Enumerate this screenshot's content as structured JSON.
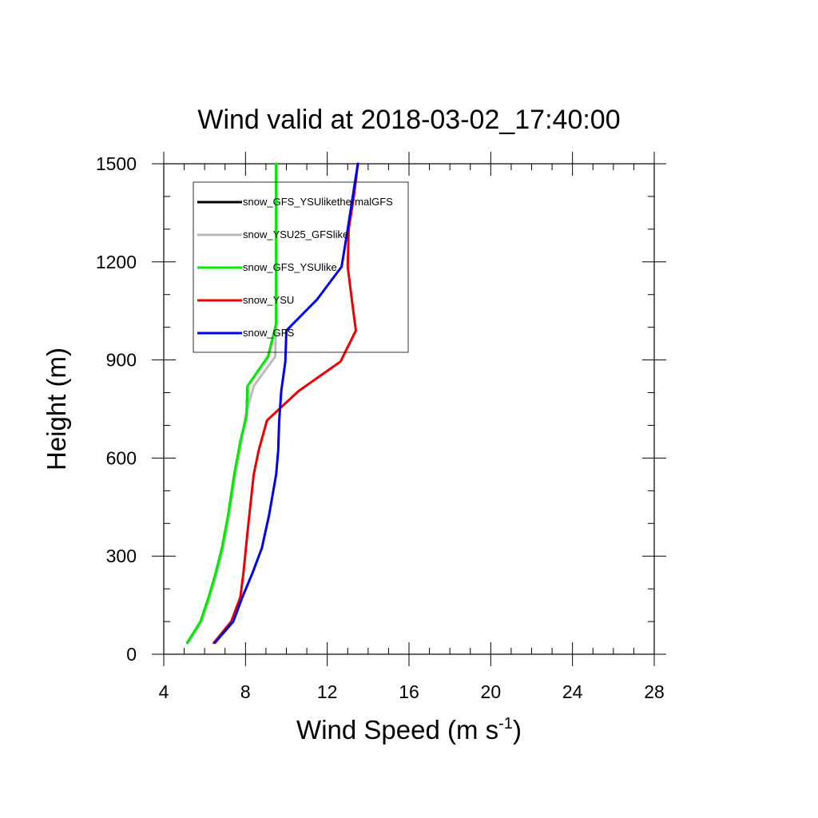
{
  "chart_data": {
    "type": "line",
    "title": "Wind valid at 2018-03-02_17:40:00",
    "xlabel": "Wind Speed (m s",
    "xlabel_sup": "-1",
    "xlabel_end": ")",
    "ylabel": "Height (m)",
    "xlim": [
      4,
      28
    ],
    "ylim": [
      0,
      1500
    ],
    "xticks": [
      4,
      8,
      12,
      16,
      20,
      24,
      28
    ],
    "yticks": [
      0,
      300,
      600,
      900,
      1200,
      1500
    ],
    "grid": false,
    "legend_position": "top-left",
    "series": [
      {
        "name": "snow_GFS_YSUlikethermalGFS",
        "color": "#000000",
        "points": [
          [
            5.15,
            35
          ],
          [
            5.8,
            100
          ],
          [
            6.2,
            175
          ],
          [
            6.55,
            250
          ],
          [
            6.85,
            325
          ],
          [
            7.15,
            425
          ],
          [
            7.45,
            550
          ],
          [
            7.75,
            650
          ],
          [
            8.05,
            730
          ],
          [
            8.1,
            820
          ],
          [
            9.1,
            910
          ],
          [
            9.5,
            1010
          ],
          [
            9.5,
            1100
          ],
          [
            9.5,
            1200
          ],
          [
            9.5,
            1300
          ],
          [
            9.5,
            1400
          ],
          [
            9.5,
            1500
          ]
        ]
      },
      {
        "name": "snow_YSU25_GFSlike",
        "color": "#bbbbbb",
        "points": [
          [
            5.2,
            35
          ],
          [
            5.85,
            100
          ],
          [
            6.25,
            175
          ],
          [
            6.6,
            250
          ],
          [
            6.9,
            325
          ],
          [
            7.2,
            425
          ],
          [
            7.5,
            550
          ],
          [
            7.8,
            650
          ],
          [
            8.0,
            730
          ],
          [
            8.4,
            820
          ],
          [
            9.45,
            910
          ],
          [
            9.5,
            1010
          ],
          [
            9.5,
            1100
          ],
          [
            9.5,
            1200
          ],
          [
            9.5,
            1300
          ],
          [
            9.5,
            1400
          ],
          [
            9.5,
            1500
          ]
        ]
      },
      {
        "name": "snow_GFS_YSUlike",
        "color": "#00ee00",
        "points": [
          [
            5.15,
            35
          ],
          [
            5.8,
            100
          ],
          [
            6.2,
            175
          ],
          [
            6.55,
            250
          ],
          [
            6.85,
            325
          ],
          [
            7.15,
            425
          ],
          [
            7.45,
            550
          ],
          [
            7.75,
            650
          ],
          [
            8.05,
            730
          ],
          [
            8.1,
            820
          ],
          [
            9.1,
            910
          ],
          [
            9.5,
            1010
          ],
          [
            9.5,
            1100
          ],
          [
            9.5,
            1200
          ],
          [
            9.5,
            1300
          ],
          [
            9.5,
            1400
          ],
          [
            9.5,
            1500
          ]
        ]
      },
      {
        "name": "snow_YSU",
        "color": "#ee0000",
        "points": [
          [
            6.45,
            35
          ],
          [
            7.3,
            100
          ],
          [
            7.75,
            175
          ],
          [
            7.9,
            250
          ],
          [
            8.1,
            375
          ],
          [
            8.4,
            550
          ],
          [
            8.65,
            625
          ],
          [
            9.05,
            715
          ],
          [
            10.6,
            805
          ],
          [
            12.65,
            895
          ],
          [
            13.4,
            990
          ],
          [
            13.2,
            1085
          ],
          [
            13.0,
            1185
          ],
          [
            13.05,
            1300
          ],
          [
            13.3,
            1400
          ],
          [
            13.5,
            1500
          ]
        ]
      },
      {
        "name": "snow_GFS",
        "color": "#0000ee",
        "points": [
          [
            6.5,
            35
          ],
          [
            7.4,
            100
          ],
          [
            7.85,
            175
          ],
          [
            8.35,
            250
          ],
          [
            8.8,
            325
          ],
          [
            9.15,
            425
          ],
          [
            9.5,
            550
          ],
          [
            9.6,
            625
          ],
          [
            9.65,
            715
          ],
          [
            9.75,
            805
          ],
          [
            9.95,
            895
          ],
          [
            10.0,
            990
          ],
          [
            11.5,
            1085
          ],
          [
            12.7,
            1185
          ],
          [
            13.0,
            1300
          ],
          [
            13.25,
            1400
          ],
          [
            13.5,
            1500
          ]
        ]
      }
    ]
  }
}
